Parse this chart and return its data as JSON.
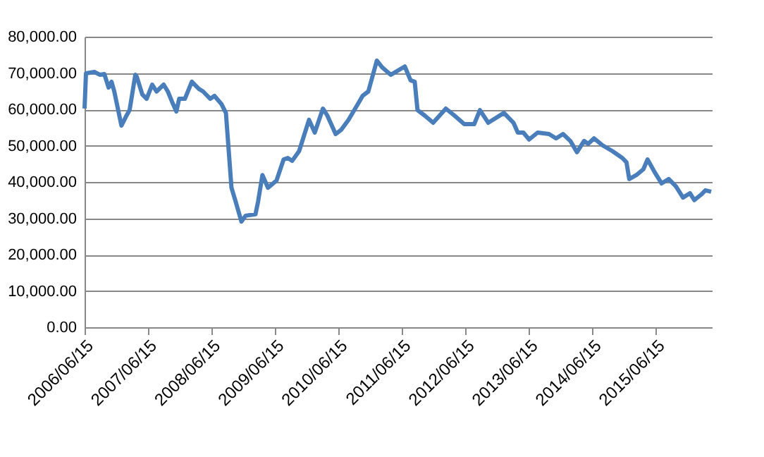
{
  "chart_data": {
    "type": "line",
    "x": [
      "2006-06-15",
      "2006-06-23",
      "2006-08-10",
      "2006-09-12",
      "2006-10-07",
      "2006-10-31",
      "2006-11-17",
      "2006-12-03",
      "2007-01-13",
      "2007-02-07",
      "2007-03-01",
      "2007-04-03",
      "2007-04-11",
      "2007-05-13",
      "2007-06-07",
      "2007-07-09",
      "2007-08-03",
      "2007-09-13",
      "2007-10-07",
      "2007-10-31",
      "2007-11-25",
      "2007-12-11",
      "2008-01-13",
      "2008-02-22",
      "2008-04-03",
      "2008-04-27",
      "2008-06-07",
      "2008-07-01",
      "2008-08-11",
      "2008-09-05",
      "2008-10-07",
      "2008-10-31",
      "2008-12-03",
      "2008-12-27",
      "2009-02-22",
      "2009-03-09",
      "2009-04-03",
      "2009-05-05",
      "2009-06-23",
      "2009-08-03",
      "2009-08-27",
      "2009-09-21",
      "2009-10-31",
      "2009-12-27",
      "2010-01-29",
      "2010-03-17",
      "2010-04-11",
      "2010-05-29",
      "2010-07-01",
      "2010-08-11",
      "2010-10-07",
      "2010-10-31",
      "2010-12-03",
      "2011-01-21",
      "2011-02-22",
      "2011-04-11",
      "2011-07-01",
      "2011-08-03",
      "2011-08-27",
      "2011-09-12",
      "2011-10-23",
      "2011-12-11",
      "2012-02-22",
      "2012-04-11",
      "2012-06-07",
      "2012-08-03",
      "2012-09-05",
      "2012-10-23",
      "2013-01-21",
      "2013-03-17",
      "2013-04-11",
      "2013-05-13",
      "2013-06-15",
      "2013-08-03",
      "2013-10-07",
      "2013-11-17",
      "2013-12-27",
      "2014-02-07",
      "2014-03-17",
      "2014-04-27",
      "2014-05-21",
      "2014-06-23",
      "2014-08-11",
      "2014-10-07",
      "2014-12-03",
      "2014-12-27",
      "2015-01-12",
      "2015-02-22",
      "2015-04-03",
      "2015-04-27",
      "2015-06-07",
      "2015-07-17",
      "2015-08-27",
      "2015-10-07",
      "2015-11-17",
      "2015-12-27",
      "2016-01-21",
      "2016-02-29",
      "2016-03-25",
      "2016-04-27"
    ],
    "series": [
      {
        "color": "#4a7ebb",
        "values": [
          60200,
          69900,
          70300,
          69500,
          69700,
          66000,
          67600,
          64900,
          55500,
          57900,
          59800,
          69500,
          69000,
          64100,
          62900,
          66800,
          64900,
          66800,
          64900,
          62100,
          59400,
          62900,
          62900,
          67600,
          65600,
          64900,
          62900,
          63700,
          61400,
          59000,
          38400,
          34600,
          29100,
          30700,
          31100,
          34600,
          41900,
          38400,
          40400,
          46200,
          46600,
          45800,
          48500,
          57100,
          53600,
          60200,
          58300,
          53200,
          54400,
          57100,
          61700,
          63700,
          64900,
          73400,
          71500,
          69500,
          71800,
          68000,
          67600,
          59800,
          58300,
          56300,
          60200,
          58300,
          55900,
          55900,
          59800,
          56300,
          59000,
          56300,
          53600,
          53600,
          51700,
          53600,
          53200,
          52000,
          53200,
          51300,
          48200,
          51300,
          50500,
          52000,
          50100,
          48500,
          46600,
          45400,
          40800,
          41900,
          43500,
          46200,
          42700,
          39600,
          40800,
          38800,
          35700,
          36900,
          35000,
          36500,
          37700,
          37300
        ]
      }
    ],
    "xlim": [
      "2006-06-15",
      "2016-05-01"
    ],
    "xticks": [
      {
        "value": "2006-06-15",
        "label": "2006/06/15"
      },
      {
        "value": "2007-06-15",
        "label": "2007/06/15"
      },
      {
        "value": "2008-06-15",
        "label": "2008/06/15"
      },
      {
        "value": "2009-06-15",
        "label": "2009/06/15"
      },
      {
        "value": "2010-06-15",
        "label": "2010/06/15"
      },
      {
        "value": "2011-06-15",
        "label": "2011/06/15"
      },
      {
        "value": "2012-06-15",
        "label": "2012/06/15"
      },
      {
        "value": "2013-06-15",
        "label": "2013/06/15"
      },
      {
        "value": "2014-06-15",
        "label": "2014/06/15"
      },
      {
        "value": "2015-06-15",
        "label": "2015/06/15"
      }
    ],
    "ylim": [
      0,
      80000
    ],
    "yticks": [
      {
        "value": 0,
        "label": "0.00"
      },
      {
        "value": 10000,
        "label": "10,000.00"
      },
      {
        "value": 20000,
        "label": "20,000.00"
      },
      {
        "value": 30000,
        "label": "30,000.00"
      },
      {
        "value": 40000,
        "label": "40,000.00"
      },
      {
        "value": 50000,
        "label": "50,000.00"
      },
      {
        "value": 60000,
        "label": "60,000.00"
      },
      {
        "value": 70000,
        "label": "70,000.00"
      },
      {
        "value": 80000,
        "label": "80,000.00"
      }
    ],
    "grid": "y",
    "marker": "none",
    "line_style": "solid"
  }
}
